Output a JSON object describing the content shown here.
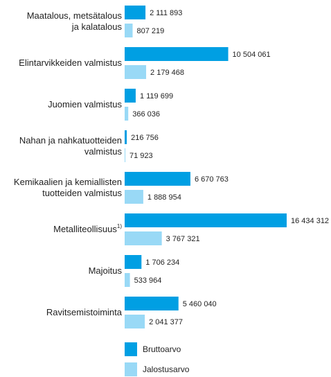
{
  "chart_data": {
    "type": "bar",
    "orientation": "horizontal",
    "categories": [
      "Maatalous, metsätalous\nja kalatalous",
      "Elintarvikkeiden valmistus",
      "Juomien valmistus",
      "Nahan ja nahkatuotteiden\nvalmistus",
      "Kemikaalien ja kemiallisten\ntuotteiden valmistus",
      "Metalliteollisuus",
      "Majoitus",
      "Ravitsemistoiminta"
    ],
    "category_notes": [
      null,
      null,
      null,
      null,
      null,
      "1)",
      null,
      null
    ],
    "series": [
      {
        "name": "Bruttoarvo",
        "color": "#009fe3",
        "values": [
          2111893,
          10504061,
          1119699,
          216756,
          6670763,
          16434312,
          1706234,
          5460040
        ],
        "value_labels": [
          "2 111 893",
          "10 504 061",
          "1 119 699",
          "216 756",
          "6 670 763",
          "16 434 312",
          "1 706 234",
          "5 460 040"
        ]
      },
      {
        "name": "Jalostusarvo",
        "color": "#99d9f6",
        "values": [
          807219,
          2179468,
          366036,
          71923,
          1888954,
          3767321,
          533964,
          2041377
        ],
        "value_labels": [
          "807 219",
          "2 179 468",
          "366 036",
          "71 923",
          "1 888 954",
          "3 767 321",
          "533 964",
          "2 041 377"
        ]
      }
    ]
  }
}
